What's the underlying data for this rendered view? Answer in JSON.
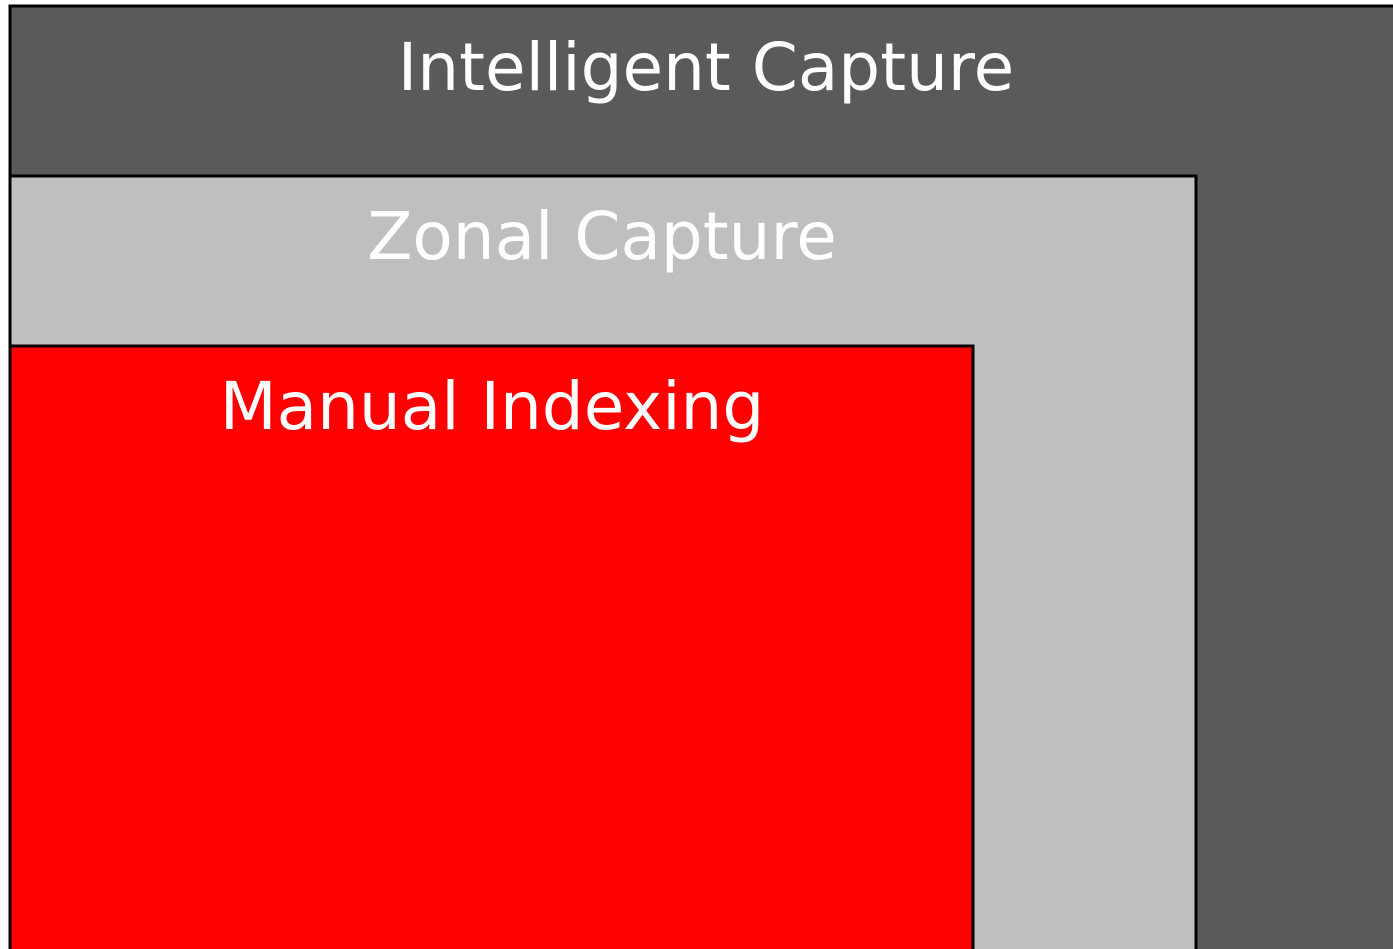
{
  "boxes": [
    {
      "label": "Intelligent Capture"
    },
    {
      "label": "Zonal Capture"
    },
    {
      "label": "Manual Indexing"
    }
  ]
}
